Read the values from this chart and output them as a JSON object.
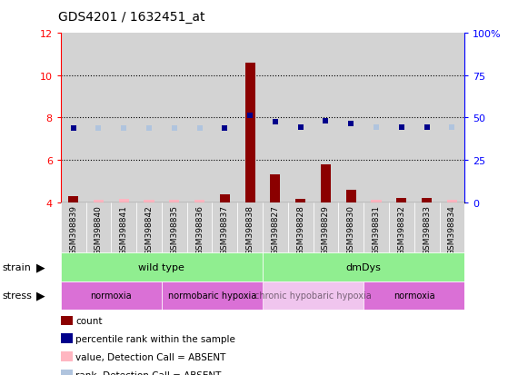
{
  "title": "GDS4201 / 1632451_at",
  "samples": [
    "GSM398839",
    "GSM398840",
    "GSM398841",
    "GSM398842",
    "GSM398835",
    "GSM398836",
    "GSM398837",
    "GSM398838",
    "GSM398827",
    "GSM398828",
    "GSM398829",
    "GSM398830",
    "GSM398831",
    "GSM398832",
    "GSM398833",
    "GSM398834"
  ],
  "count_values": [
    4.3,
    4.1,
    4.15,
    4.1,
    4.1,
    4.1,
    4.35,
    10.6,
    5.3,
    4.15,
    5.8,
    4.6,
    4.1,
    4.2,
    4.2,
    4.1
  ],
  "count_absent": [
    false,
    true,
    true,
    true,
    true,
    true,
    false,
    false,
    false,
    false,
    false,
    false,
    true,
    false,
    false,
    true
  ],
  "rank_values": [
    43.75,
    43.75,
    43.75,
    43.75,
    43.75,
    43.75,
    43.75,
    51.25,
    47.5,
    44.375,
    48.125,
    46.25,
    44.375,
    44.375,
    44.375,
    44.375
  ],
  "rank_absent": [
    false,
    true,
    true,
    true,
    true,
    true,
    false,
    false,
    false,
    false,
    false,
    false,
    true,
    false,
    false,
    true
  ],
  "ylim_left": [
    4,
    12
  ],
  "ylim_right": [
    0,
    100
  ],
  "yticks_left": [
    4,
    6,
    8,
    10,
    12
  ],
  "yticks_right": [
    0,
    25,
    50,
    75,
    100
  ],
  "ytick_labels_left": [
    "4",
    "6",
    "8",
    "10",
    "12"
  ],
  "ytick_labels_right": [
    "0",
    "25",
    "50",
    "75",
    "100%"
  ],
  "color_count": "#8B0000",
  "color_count_absent": "#FFB6C1",
  "color_rank": "#00008B",
  "color_rank_absent": "#B0C4DE",
  "bg_color": "#D3D3D3",
  "strain_groups": [
    {
      "label": "wild type",
      "start": 0,
      "end": 8,
      "color": "#90EE90"
    },
    {
      "label": "dmDys",
      "start": 8,
      "end": 16,
      "color": "#90EE90"
    }
  ],
  "stress_groups": [
    {
      "label": "normoxia",
      "start": 0,
      "end": 4,
      "color": "#DA70D6",
      "alpha": 1.0,
      "text_alpha": 1.0
    },
    {
      "label": "normobaric hypoxia",
      "start": 4,
      "end": 8,
      "color": "#DA70D6",
      "alpha": 1.0,
      "text_alpha": 1.0
    },
    {
      "label": "chronic hypobaric hypoxia",
      "start": 8,
      "end": 12,
      "color": "#DA70D6",
      "alpha": 0.4,
      "text_alpha": 0.5
    },
    {
      "label": "normoxia",
      "start": 12,
      "end": 16,
      "color": "#DA70D6",
      "alpha": 1.0,
      "text_alpha": 1.0
    }
  ],
  "legend_items": [
    {
      "color": "#8B0000",
      "label": "count"
    },
    {
      "color": "#00008B",
      "label": "percentile rank within the sample"
    },
    {
      "color": "#FFB6C1",
      "label": "value, Detection Call = ABSENT"
    },
    {
      "color": "#B0C4DE",
      "label": "rank, Detection Call = ABSENT"
    }
  ]
}
